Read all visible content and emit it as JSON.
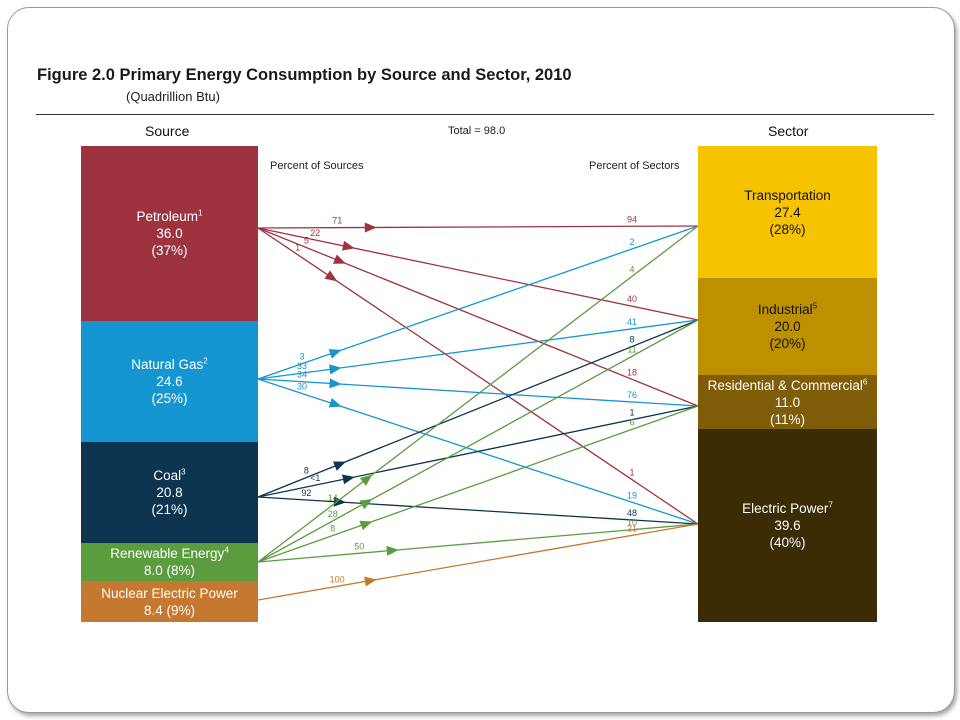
{
  "figure": {
    "title": "Figure 2.0  Primary Energy Consumption by Source and Sector, 2010",
    "subtitle": "(Quadrillion Btu)"
  },
  "headers": {
    "source": "Source",
    "total": "Total = 98.0",
    "sector": "Sector",
    "percent_sources": "Percent of Sources",
    "percent_sectors": "Percent of Sectors"
  },
  "sources": [
    {
      "name": "Petroleum",
      "note": "1",
      "value": "36.0",
      "pct": "(37%)",
      "color": "#9e3340"
    },
    {
      "name": "Natural Gas",
      "note": "2",
      "value": "24.6",
      "pct": "(25%)",
      "color": "#1596d1"
    },
    {
      "name": "Coal",
      "note": "3",
      "value": "20.8",
      "pct": "(21%)",
      "color": "#0d3550"
    },
    {
      "name": "Renewable Energy",
      "note": "4",
      "value_pct": "8.0 (8%)",
      "color": "#5b9c3f"
    },
    {
      "name": "Nuclear Electric Power",
      "note": "",
      "value_pct": "8.4 (9%)",
      "color": "#c5782f"
    }
  ],
  "sectors": [
    {
      "name": "Transportation",
      "note": "",
      "value": "27.4",
      "pct": "(28%)",
      "color": "#f6c300"
    },
    {
      "name": "Industrial",
      "note": "5",
      "value": "20.0",
      "pct": "(20%)",
      "color": "#bd9000"
    },
    {
      "name": "Residential & Commercial",
      "note": "6",
      "value": "11.0",
      "pct": "(11%)",
      "color": "#7f5d08"
    },
    {
      "name": "Electric Power",
      "note": "7",
      "value": "39.6",
      "pct": "(40%)",
      "color": "#3c2c06"
    }
  ],
  "flows": [
    {
      "from": "Petroleum",
      "to": "Transportation",
      "pct_source": "71",
      "pct_sector": "94"
    },
    {
      "from": "Petroleum",
      "to": "Industrial",
      "pct_source": "22",
      "pct_sector": "40"
    },
    {
      "from": "Petroleum",
      "to": "Residential & Commercial",
      "pct_source": "5",
      "pct_sector": "18"
    },
    {
      "from": "Petroleum",
      "to": "Electric Power",
      "pct_source": "1",
      "pct_sector": "1"
    },
    {
      "from": "Natural Gas",
      "to": "Transportation",
      "pct_source": "3",
      "pct_sector": "2"
    },
    {
      "from": "Natural Gas",
      "to": "Industrial",
      "pct_source": "33",
      "pct_sector": "41"
    },
    {
      "from": "Natural Gas",
      "to": "Residential & Commercial",
      "pct_source": "34",
      "pct_sector": "76"
    },
    {
      "from": "Natural Gas",
      "to": "Electric Power",
      "pct_source": "30",
      "pct_sector": "19"
    },
    {
      "from": "Coal",
      "to": "Industrial",
      "pct_source": "8",
      "pct_sector": "8"
    },
    {
      "from": "Coal",
      "to": "Residential & Commercial",
      "pct_source": "<1",
      "pct_sector": "1"
    },
    {
      "from": "Coal",
      "to": "Electric Power",
      "pct_source": "92",
      "pct_sector": "48"
    },
    {
      "from": "Renewable Energy",
      "to": "Transportation",
      "pct_source": "14",
      "pct_sector": "4"
    },
    {
      "from": "Renewable Energy",
      "to": "Industrial",
      "pct_source": "28",
      "pct_sector": "11"
    },
    {
      "from": "Renewable Energy",
      "to": "Residential & Commercial",
      "pct_source": "8",
      "pct_sector": "6"
    },
    {
      "from": "Renewable Energy",
      "to": "Electric Power",
      "pct_source": "50",
      "pct_sector": "10"
    },
    {
      "from": "Nuclear Electric Power",
      "to": "Electric Power",
      "pct_source": "100",
      "pct_sector": "21"
    }
  ]
}
